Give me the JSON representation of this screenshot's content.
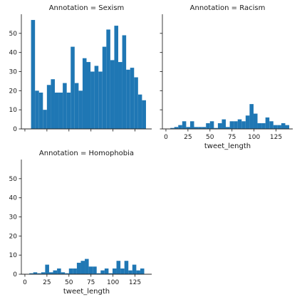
{
  "chart_data": {
    "type": "bar",
    "kind": "histogram-facet-grid",
    "bar_color": "#1f77b4",
    "grid": false,
    "x_ticks": [
      0,
      25,
      50,
      75,
      100,
      125
    ],
    "y_ticks": [
      0,
      10,
      20,
      30,
      40,
      50
    ],
    "xlim": [
      -4,
      144
    ],
    "ylim": [
      0,
      60
    ],
    "facets": [
      {
        "title": "Annotation = Sexism",
        "show_x_tick_labels": false,
        "show_y_tick_labels": true,
        "xlabel": "",
        "bins": [
          {
            "x0": 7,
            "x1": 11.5,
            "count": 57
          },
          {
            "x0": 11.5,
            "x1": 16,
            "count": 20
          },
          {
            "x0": 16,
            "x1": 20.5,
            "count": 19
          },
          {
            "x0": 20.5,
            "x1": 25,
            "count": 10
          },
          {
            "x0": 25,
            "x1": 29.5,
            "count": 23
          },
          {
            "x0": 29.5,
            "x1": 34,
            "count": 26
          },
          {
            "x0": 34,
            "x1": 38.5,
            "count": 19
          },
          {
            "x0": 38.5,
            "x1": 43,
            "count": 19
          },
          {
            "x0": 43,
            "x1": 47.5,
            "count": 24
          },
          {
            "x0": 47.5,
            "x1": 52,
            "count": 19
          },
          {
            "x0": 52,
            "x1": 56.5,
            "count": 43
          },
          {
            "x0": 56.5,
            "x1": 61,
            "count": 24
          },
          {
            "x0": 61,
            "x1": 65.5,
            "count": 20
          },
          {
            "x0": 65.5,
            "x1": 70,
            "count": 37
          },
          {
            "x0": 70,
            "x1": 74.5,
            "count": 35
          },
          {
            "x0": 74.5,
            "x1": 79,
            "count": 30
          },
          {
            "x0": 79,
            "x1": 83.5,
            "count": 33
          },
          {
            "x0": 83.5,
            "x1": 88,
            "count": 30
          },
          {
            "x0": 88,
            "x1": 92.5,
            "count": 43
          },
          {
            "x0": 92.5,
            "x1": 97,
            "count": 52
          },
          {
            "x0": 97,
            "x1": 101.5,
            "count": 36
          },
          {
            "x0": 101.5,
            "x1": 106,
            "count": 54
          },
          {
            "x0": 106,
            "x1": 110.5,
            "count": 35
          },
          {
            "x0": 110.5,
            "x1": 115,
            "count": 49
          },
          {
            "x0": 115,
            "x1": 119.5,
            "count": 31
          },
          {
            "x0": 119.5,
            "x1": 124,
            "count": 32
          },
          {
            "x0": 124,
            "x1": 128.5,
            "count": 27
          },
          {
            "x0": 128.5,
            "x1": 133,
            "count": 18
          },
          {
            "x0": 133,
            "x1": 137.5,
            "count": 15
          }
        ]
      },
      {
        "title": "Annotation = Racism",
        "show_x_tick_labels": true,
        "show_y_tick_labels": false,
        "xlabel": "tweet_length",
        "bins": [
          {
            "x0": 5,
            "x1": 9.5,
            "count": 0.5
          },
          {
            "x0": 9.5,
            "x1": 14,
            "count": 1
          },
          {
            "x0": 14,
            "x1": 18.5,
            "count": 2
          },
          {
            "x0": 18.5,
            "x1": 23,
            "count": 4
          },
          {
            "x0": 23,
            "x1": 27.5,
            "count": 1
          },
          {
            "x0": 27.5,
            "x1": 32,
            "count": 4
          },
          {
            "x0": 32,
            "x1": 36.5,
            "count": 1
          },
          {
            "x0": 36.5,
            "x1": 41,
            "count": 1
          },
          {
            "x0": 41,
            "x1": 45.5,
            "count": 1
          },
          {
            "x0": 45.5,
            "x1": 50,
            "count": 3
          },
          {
            "x0": 50,
            "x1": 54.5,
            "count": 4
          },
          {
            "x0": 54.5,
            "x1": 59,
            "count": 0.5
          },
          {
            "x0": 59,
            "x1": 63.5,
            "count": 3
          },
          {
            "x0": 63.5,
            "x1": 68,
            "count": 5
          },
          {
            "x0": 68,
            "x1": 72.5,
            "count": 1
          },
          {
            "x0": 72.5,
            "x1": 77,
            "count": 4
          },
          {
            "x0": 77,
            "x1": 81.5,
            "count": 4
          },
          {
            "x0": 81.5,
            "x1": 86,
            "count": 5
          },
          {
            "x0": 86,
            "x1": 90.5,
            "count": 4
          },
          {
            "x0": 90.5,
            "x1": 95,
            "count": 7
          },
          {
            "x0": 95,
            "x1": 99.5,
            "count": 13
          },
          {
            "x0": 99.5,
            "x1": 104,
            "count": 8
          },
          {
            "x0": 104,
            "x1": 108.5,
            "count": 3
          },
          {
            "x0": 108.5,
            "x1": 113,
            "count": 3
          },
          {
            "x0": 113,
            "x1": 117.5,
            "count": 6
          },
          {
            "x0": 117.5,
            "x1": 122,
            "count": 4
          },
          {
            "x0": 122,
            "x1": 126.5,
            "count": 2
          },
          {
            "x0": 126.5,
            "x1": 131,
            "count": 2
          },
          {
            "x0": 131,
            "x1": 135.5,
            "count": 3
          },
          {
            "x0": 135.5,
            "x1": 140,
            "count": 2
          }
        ]
      },
      {
        "title": "Annotation = Homophobia",
        "show_x_tick_labels": true,
        "show_y_tick_labels": true,
        "xlabel": "tweet_length",
        "bins": [
          {
            "x0": 5,
            "x1": 9.5,
            "count": 0.5
          },
          {
            "x0": 9.5,
            "x1": 14,
            "count": 1
          },
          {
            "x0": 14,
            "x1": 18.5,
            "count": 0.5
          },
          {
            "x0": 18.5,
            "x1": 23,
            "count": 1
          },
          {
            "x0": 23,
            "x1": 27.5,
            "count": 5
          },
          {
            "x0": 27.5,
            "x1": 32,
            "count": 1
          },
          {
            "x0": 32,
            "x1": 36.5,
            "count": 2
          },
          {
            "x0": 36.5,
            "x1": 41,
            "count": 3
          },
          {
            "x0": 41,
            "x1": 45.5,
            "count": 1
          },
          {
            "x0": 45.5,
            "x1": 50,
            "count": 0.5
          },
          {
            "x0": 50,
            "x1": 54.5,
            "count": 3
          },
          {
            "x0": 54.5,
            "x1": 59,
            "count": 3
          },
          {
            "x0": 59,
            "x1": 63.5,
            "count": 6
          },
          {
            "x0": 63.5,
            "x1": 68,
            "count": 7
          },
          {
            "x0": 68,
            "x1": 72.5,
            "count": 8
          },
          {
            "x0": 72.5,
            "x1": 77,
            "count": 4
          },
          {
            "x0": 77,
            "x1": 81.5,
            "count": 4
          },
          {
            "x0": 81.5,
            "x1": 86,
            "count": 0.5
          },
          {
            "x0": 86,
            "x1": 90.5,
            "count": 2
          },
          {
            "x0": 90.5,
            "x1": 95,
            "count": 3
          },
          {
            "x0": 95,
            "x1": 99.5,
            "count": 0.5
          },
          {
            "x0": 99.5,
            "x1": 104,
            "count": 3
          },
          {
            "x0": 104,
            "x1": 108.5,
            "count": 7
          },
          {
            "x0": 108.5,
            "x1": 113,
            "count": 3
          },
          {
            "x0": 113,
            "x1": 117.5,
            "count": 7
          },
          {
            "x0": 117.5,
            "x1": 122,
            "count": 2
          },
          {
            "x0": 122,
            "x1": 126.5,
            "count": 5
          },
          {
            "x0": 126.5,
            "x1": 131,
            "count": 2
          },
          {
            "x0": 131,
            "x1": 135.5,
            "count": 3
          }
        ]
      }
    ]
  }
}
